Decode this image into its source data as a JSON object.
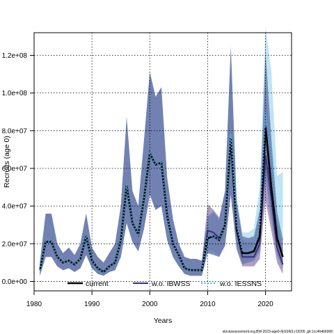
{
  "chart_data": {
    "type": "line",
    "xlabel": "Years",
    "ylabel": "Recruits (age 0)",
    "xlim": [
      1980,
      2024.5
    ],
    "ylim": [
      -5000000,
      132000000
    ],
    "xticks": [
      1980,
      1990,
      2000,
      2010,
      2020
    ],
    "xtick_labels": [
      "1980",
      "1990",
      "2000",
      "2010",
      "2020"
    ],
    "yticks": [
      0,
      20000000,
      40000000,
      60000000,
      80000000,
      100000000,
      120000000
    ],
    "ytick_labels": [
      "0.0e+00",
      "2.0e+07",
      "4.0e+07",
      "6.0e+07",
      "8.0e+07",
      "1.0e+08",
      "1.2e+08"
    ],
    "grid": true,
    "legend_position": "bottom",
    "x": [
      1981,
      1982,
      1983,
      1984,
      1985,
      1986,
      1987,
      1988,
      1989,
      1990,
      1991,
      1992,
      1993,
      1994,
      1995,
      1996,
      1997,
      1998,
      1999,
      2000,
      2001,
      2002,
      2003,
      2004,
      2005,
      2006,
      2007,
      2008,
      2009,
      2010,
      2011,
      2012,
      2013,
      2014,
      2015,
      2016,
      2017,
      2018,
      2019,
      2020,
      2021,
      2022,
      2023
    ],
    "series": [
      {
        "name": "current",
        "color": "#000000",
        "dash": "solid",
        "values": [
          6000000,
          21000000,
          21000000,
          13000000,
          10000000,
          11000000,
          9000000,
          12000000,
          24000000,
          11000000,
          7000000,
          5000000,
          8000000,
          10000000,
          22000000,
          51000000,
          31000000,
          25000000,
          44000000,
          68000000,
          62000000,
          63000000,
          35000000,
          20000000,
          14000000,
          7000000,
          6000000,
          6000000,
          6000000,
          23000000,
          24000000,
          22000000,
          30000000,
          76000000,
          28000000,
          15000000,
          15000000,
          16000000,
          24000000,
          82000000,
          50000000,
          23000000,
          13000000
        ],
        "lower": [
          3000000,
          13000000,
          13000000,
          8000000,
          6000000,
          7000000,
          5000000,
          7000000,
          14000000,
          7000000,
          4000000,
          3000000,
          5000000,
          6000000,
          13000000,
          31000000,
          21000000,
          16000000,
          28000000,
          46000000,
          38000000,
          40000000,
          22000000,
          13000000,
          8000000,
          4000000,
          3000000,
          3000000,
          3000000,
          15000000,
          14000000,
          13000000,
          19000000,
          46000000,
          18000000,
          9000000,
          10000000,
          11000000,
          16000000,
          55000000,
          33000000,
          14000000,
          7000000
        ],
        "upper": [
          10000000,
          36000000,
          36000000,
          20000000,
          15000000,
          18000000,
          14000000,
          20000000,
          36000000,
          18000000,
          13000000,
          10000000,
          15000000,
          20000000,
          40000000,
          87000000,
          48000000,
          40000000,
          75000000,
          111000000,
          98000000,
          103000000,
          55000000,
          33000000,
          20000000,
          13000000,
          12000000,
          12000000,
          11000000,
          34000000,
          37000000,
          33000000,
          48000000,
          124000000,
          43000000,
          24000000,
          23000000,
          24000000,
          38000000,
          122000000,
          76000000,
          37000000,
          22000000
        ]
      },
      {
        "name": "w.o. IBWSS",
        "color": "#3a2e7a",
        "dash": "solid",
        "values": [
          6000000,
          21000000,
          21000000,
          13000000,
          10000000,
          11000000,
          9000000,
          12000000,
          24000000,
          11000000,
          7000000,
          5000000,
          8000000,
          10000000,
          22000000,
          51000000,
          31000000,
          25000000,
          44000000,
          68000000,
          62000000,
          63000000,
          35000000,
          20000000,
          14000000,
          7000000,
          6000000,
          6000000,
          6000000,
          27000000,
          26000000,
          23000000,
          30000000,
          76000000,
          27000000,
          13000000,
          13000000,
          13000000,
          20000000,
          67000000,
          44000000,
          18000000,
          9000000
        ],
        "lower": [
          3000000,
          13000000,
          13000000,
          8000000,
          6000000,
          7000000,
          5000000,
          7000000,
          14000000,
          7000000,
          4000000,
          3000000,
          5000000,
          6000000,
          13000000,
          31000000,
          21000000,
          16000000,
          28000000,
          46000000,
          38000000,
          40000000,
          22000000,
          13000000,
          8000000,
          4000000,
          3000000,
          3000000,
          3000000,
          17000000,
          16000000,
          14000000,
          19000000,
          46000000,
          17000000,
          8000000,
          8000000,
          8000000,
          12000000,
          43000000,
          27000000,
          10000000,
          4000000
        ],
        "upper": [
          10000000,
          36000000,
          36000000,
          20000000,
          15000000,
          18000000,
          14000000,
          20000000,
          36000000,
          18000000,
          13000000,
          10000000,
          15000000,
          20000000,
          40000000,
          87000000,
          48000000,
          40000000,
          75000000,
          111000000,
          98000000,
          103000000,
          55000000,
          33000000,
          20000000,
          13000000,
          12000000,
          12000000,
          11000000,
          41000000,
          38000000,
          34000000,
          48000000,
          124000000,
          42000000,
          22000000,
          21000000,
          21000000,
          33000000,
          102000000,
          70000000,
          31000000,
          17000000
        ]
      },
      {
        "name": "w.o. IESSNS",
        "color": "#4ab3d9",
        "dash": "dotted",
        "values": [
          6000000,
          21000000,
          21000000,
          13000000,
          10000000,
          11000000,
          9000000,
          12000000,
          24000000,
          11000000,
          7000000,
          5000000,
          8000000,
          10000000,
          22000000,
          51000000,
          31000000,
          25000000,
          44000000,
          68000000,
          62000000,
          63000000,
          35000000,
          20000000,
          14000000,
          7000000,
          6000000,
          6000000,
          6000000,
          24000000,
          24000000,
          22000000,
          30000000,
          78000000,
          30000000,
          16000000,
          16000000,
          18000000,
          30000000,
          90000000,
          68000000,
          34000000,
          22000000
        ],
        "lower": [
          3000000,
          13000000,
          13000000,
          8000000,
          6000000,
          7000000,
          5000000,
          7000000,
          14000000,
          7000000,
          4000000,
          3000000,
          5000000,
          6000000,
          13000000,
          31000000,
          21000000,
          16000000,
          28000000,
          46000000,
          38000000,
          40000000,
          22000000,
          13000000,
          8000000,
          4000000,
          3000000,
          3000000,
          3000000,
          15000000,
          15000000,
          13000000,
          19000000,
          48000000,
          19000000,
          10000000,
          11000000,
          12000000,
          18000000,
          60000000,
          40000000,
          18000000,
          10000000
        ],
        "upper": [
          10000000,
          36000000,
          36000000,
          20000000,
          15000000,
          18000000,
          14000000,
          20000000,
          36000000,
          18000000,
          13000000,
          10000000,
          15000000,
          20000000,
          40000000,
          87000000,
          48000000,
          40000000,
          75000000,
          111000000,
          98000000,
          103000000,
          55000000,
          33000000,
          20000000,
          13000000,
          12000000,
          12000000,
          11000000,
          35000000,
          37000000,
          33000000,
          48000000,
          126000000,
          45000000,
          26000000,
          26000000,
          28000000,
          50000000,
          135000000,
          112000000,
          56000000,
          58000000
        ]
      }
    ]
  },
  "footer": "stockassessment.org,BW-2023-age0-IESSNS,r19305 ,git:1cc464b6068"
}
